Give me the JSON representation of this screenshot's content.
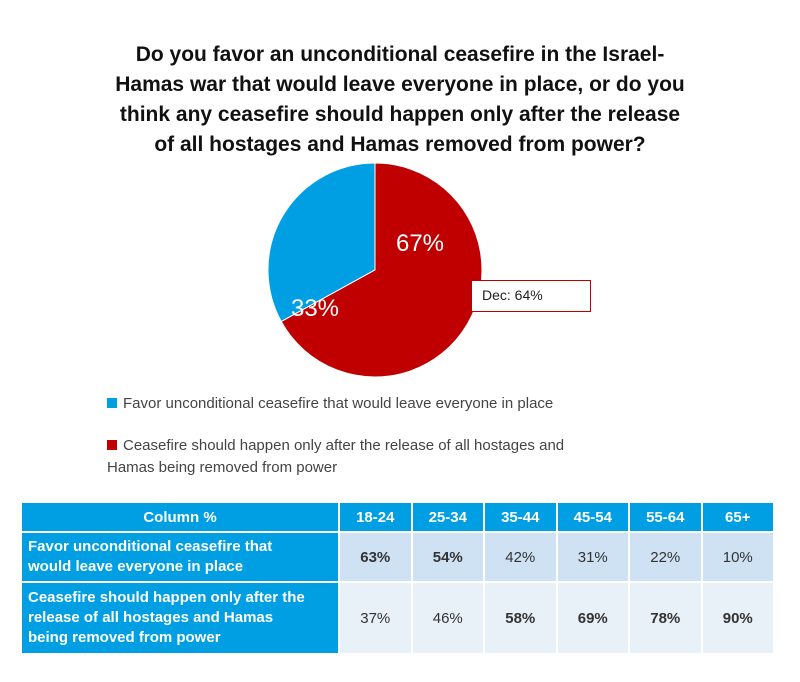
{
  "chart_data": {
    "type": "pie",
    "title_lines": [
      "Do you favor an unconditional ceasefire in the Israel-",
      "Hamas war that would leave everyone in place, or do you",
      "think any ceasefire should happen only after the release",
      "of all hostages and Hamas removed from power?"
    ],
    "slices": [
      {
        "label": "Favor unconditional ceasefire that would leave everyone in place",
        "value": 33,
        "display": "33%",
        "color": "#009fe3"
      },
      {
        "label": "Ceasefire should happen only after the release of all hostages and Hamas being removed from power",
        "value": 67,
        "display": "67%",
        "color": "#c00000"
      }
    ],
    "callout": "Dec: 64%",
    "legend": [
      {
        "lines": [
          "Favor unconditional ceasefire that would leave everyone in place"
        ],
        "color": "#009fe3"
      },
      {
        "lines": [
          "Ceasefire should happen only after the release of all hostages and",
          "Hamas being removed from power"
        ],
        "color": "#c00000"
      }
    ],
    "table": {
      "header_label": "Column %",
      "columns": [
        "18-24",
        "25-34",
        "35-44",
        "45-54",
        "55-64",
        "65+"
      ],
      "rows": [
        {
          "label_lines": [
            "Favor unconditional ceasefire that",
            "would leave everyone in place"
          ],
          "values": [
            "63%",
            "54%",
            "42%",
            "31%",
            "22%",
            "10%"
          ],
          "bold": [
            true,
            true,
            false,
            false,
            false,
            false
          ]
        },
        {
          "label_lines": [
            "Ceasefire should happen only after the",
            "release of all hostages and Hamas",
            "being removed from power"
          ],
          "values": [
            "37%",
            "46%",
            "58%",
            "69%",
            "78%",
            "90%"
          ],
          "bold": [
            false,
            false,
            true,
            true,
            true,
            true
          ]
        }
      ]
    }
  }
}
